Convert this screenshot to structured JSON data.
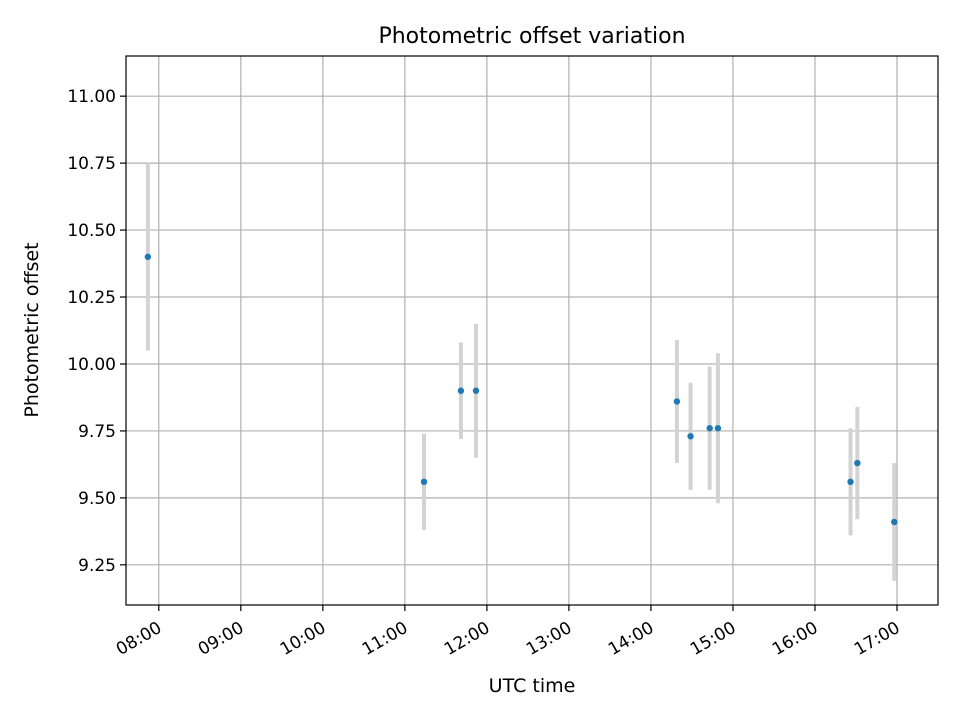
{
  "chart_data": {
    "type": "scatter",
    "title": "Photometric offset variation",
    "xlabel": "UTC time",
    "ylabel": "Photometric offset",
    "xlim": [
      "07:36",
      "17:30"
    ],
    "ylim": [
      9.1,
      11.15
    ],
    "grid": true,
    "x_tick_labels": [
      "08:00",
      "09:00",
      "10:00",
      "11:00",
      "12:00",
      "13:00",
      "14:00",
      "15:00",
      "16:00",
      "17:00"
    ],
    "y_tick_labels": [
      "9.25",
      "9.50",
      "9.75",
      "10.00",
      "10.25",
      "10.50",
      "10.75",
      "11.00"
    ],
    "points": [
      {
        "x": "07:52",
        "y": 10.4,
        "err": 0.35
      },
      {
        "x": "11:14",
        "y": 9.56,
        "err": 0.18
      },
      {
        "x": "11:41",
        "y": 9.9,
        "err": 0.18
      },
      {
        "x": "11:52",
        "y": 9.9,
        "err": 0.25
      },
      {
        "x": "14:19",
        "y": 9.86,
        "err": 0.23
      },
      {
        "x": "14:29",
        "y": 9.73,
        "err": 0.2
      },
      {
        "x": "14:43",
        "y": 9.76,
        "err": 0.23
      },
      {
        "x": "14:49",
        "y": 9.76,
        "err": 0.28
      },
      {
        "x": "16:26",
        "y": 9.56,
        "err": 0.2
      },
      {
        "x": "16:31",
        "y": 9.63,
        "err": 0.21
      },
      {
        "x": "16:58",
        "y": 9.41,
        "err": 0.22
      }
    ],
    "colors": {
      "point": "#1f77b4",
      "errorbar": "#d3d3d3",
      "grid": "#b0b0b0"
    }
  }
}
